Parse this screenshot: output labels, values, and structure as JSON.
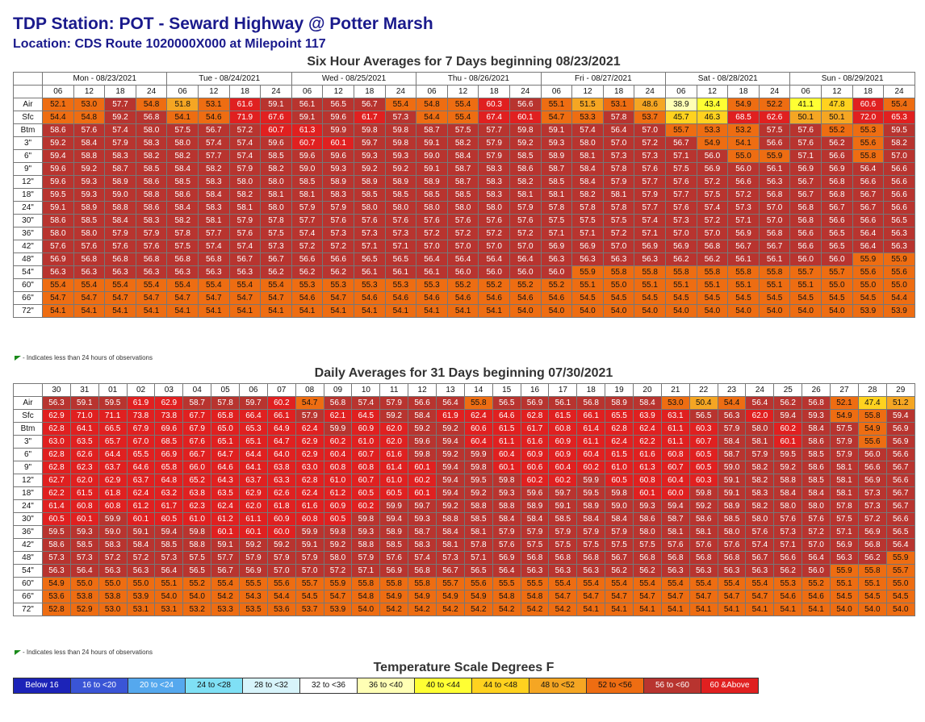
{
  "header": {
    "station": "TDP Station: POT - Seward Highway @ Potter Marsh",
    "location": "Location: CDS Route 1020000X000 at Milepoint 117"
  },
  "note_text": "- Indicates less than 24 hours of observations",
  "row_labels": [
    "Air",
    "Sfc",
    "Btm",
    "3\"",
    "6\"",
    "9\"",
    "12\"",
    "18\"",
    "24\"",
    "30\"",
    "36\"",
    "42\"",
    "48\"",
    "54\"",
    "60\"",
    "66\"",
    "72\""
  ],
  "chart_data": [
    {
      "type": "table",
      "title": "Six Hour Averages for 7 Days beginning 08/23/2021",
      "days": [
        "Mon - 08/23/2021",
        "Tue - 08/24/2021",
        "Wed - 08/25/2021",
        "Thu - 08/26/2021",
        "Fri - 08/27/2021",
        "Sat - 08/28/2021",
        "Sun - 08/29/2021"
      ],
      "hours": [
        "06",
        "12",
        "18",
        "24"
      ],
      "values": [
        [
          52.1,
          53.0,
          57.7,
          54.8,
          51.8,
          53.1,
          61.6,
          59.1,
          56.1,
          56.5,
          56.7,
          55.4,
          54.8,
          55.4,
          60.3,
          56.6,
          55.1,
          51.5,
          53.1,
          48.6,
          38.9,
          43.4,
          54.9,
          52.2,
          41.1,
          47.8,
          60.6,
          55.4
        ],
        [
          54.4,
          54.8,
          59.2,
          56.8,
          54.1,
          54.6,
          71.9,
          67.6,
          59.1,
          59.6,
          61.7,
          57.3,
          54.4,
          55.4,
          67.4,
          60.1,
          54.7,
          53.3,
          57.8,
          53.7,
          45.7,
          46.3,
          68.5,
          62.6,
          50.1,
          50.1,
          72.0,
          65.3
        ],
        [
          58.6,
          57.6,
          57.4,
          58.0,
          57.5,
          56.7,
          57.2,
          60.7,
          61.3,
          59.9,
          59.8,
          59.8,
          58.7,
          57.5,
          57.7,
          59.8,
          59.1,
          57.4,
          56.4,
          57.0,
          55.7,
          53.3,
          53.2,
          57.5,
          57.6,
          55.2,
          55.3,
          59.5
        ],
        [
          59.2,
          58.4,
          57.9,
          58.3,
          58.0,
          57.4,
          57.4,
          59.6,
          60.7,
          60.1,
          59.7,
          59.8,
          59.1,
          58.2,
          57.9,
          59.2,
          59.3,
          58.0,
          57.0,
          57.2,
          56.7,
          54.9,
          54.1,
          56.6,
          57.6,
          56.2,
          55.6,
          58.2
        ],
        [
          59.4,
          58.8,
          58.3,
          58.2,
          58.2,
          57.7,
          57.4,
          58.5,
          59.6,
          59.6,
          59.3,
          59.3,
          59.0,
          58.4,
          57.9,
          58.5,
          58.9,
          58.1,
          57.3,
          57.3,
          57.1,
          56.0,
          55.0,
          55.9,
          57.1,
          56.6,
          55.8,
          57.0
        ],
        [
          59.6,
          59.2,
          58.7,
          58.5,
          58.4,
          58.2,
          57.9,
          58.2,
          59.0,
          59.3,
          59.2,
          59.2,
          59.1,
          58.7,
          58.3,
          58.6,
          58.7,
          58.4,
          57.8,
          57.6,
          57.5,
          56.9,
          56.0,
          56.1,
          56.9,
          56.9,
          56.4,
          56.6
        ],
        [
          59.6,
          59.3,
          58.9,
          58.6,
          58.5,
          58.3,
          58.0,
          58.0,
          58.5,
          58.9,
          58.9,
          58.9,
          58.9,
          58.7,
          58.3,
          58.2,
          58.5,
          58.4,
          57.9,
          57.7,
          57.6,
          57.2,
          56.6,
          56.3,
          56.7,
          56.8,
          56.6,
          56.6
        ],
        [
          59.5,
          59.3,
          59.0,
          58.8,
          58.6,
          58.4,
          58.2,
          58.1,
          58.1,
          58.3,
          58.5,
          58.5,
          58.5,
          58.5,
          58.3,
          58.1,
          58.1,
          58.2,
          58.1,
          57.9,
          57.7,
          57.5,
          57.2,
          56.8,
          56.7,
          56.8,
          56.7,
          56.6
        ],
        [
          59.1,
          58.9,
          58.8,
          58.6,
          58.4,
          58.3,
          58.1,
          58.0,
          57.9,
          57.9,
          58.0,
          58.0,
          58.0,
          58.0,
          58.0,
          57.9,
          57.8,
          57.8,
          57.8,
          57.7,
          57.6,
          57.4,
          57.3,
          57.0,
          56.8,
          56.7,
          56.7,
          56.6
        ],
        [
          58.6,
          58.5,
          58.4,
          58.3,
          58.2,
          58.1,
          57.9,
          57.8,
          57.7,
          57.6,
          57.6,
          57.6,
          57.6,
          57.6,
          57.6,
          57.6,
          57.5,
          57.5,
          57.5,
          57.4,
          57.3,
          57.2,
          57.1,
          57.0,
          56.8,
          56.6,
          56.6,
          56.5
        ],
        [
          58.0,
          58.0,
          57.9,
          57.9,
          57.8,
          57.7,
          57.6,
          57.5,
          57.4,
          57.3,
          57.3,
          57.3,
          57.2,
          57.2,
          57.2,
          57.2,
          57.1,
          57.1,
          57.2,
          57.1,
          57.0,
          57.0,
          56.9,
          56.8,
          56.6,
          56.5,
          56.4,
          56.3
        ],
        [
          57.6,
          57.6,
          57.6,
          57.6,
          57.5,
          57.4,
          57.4,
          57.3,
          57.2,
          57.2,
          57.1,
          57.1,
          57.0,
          57.0,
          57.0,
          57.0,
          56.9,
          56.9,
          57.0,
          56.9,
          56.9,
          56.8,
          56.7,
          56.7,
          56.6,
          56.5,
          56.4,
          56.3
        ],
        [
          56.9,
          56.8,
          56.8,
          56.8,
          56.8,
          56.8,
          56.7,
          56.7,
          56.6,
          56.6,
          56.5,
          56.5,
          56.4,
          56.4,
          56.4,
          56.4,
          56.3,
          56.3,
          56.3,
          56.3,
          56.2,
          56.2,
          56.1,
          56.1,
          56.0,
          56.0,
          55.9,
          55.9
        ],
        [
          56.3,
          56.3,
          56.3,
          56.3,
          56.3,
          56.3,
          56.3,
          56.2,
          56.2,
          56.2,
          56.1,
          56.1,
          56.1,
          56.0,
          56.0,
          56.0,
          56.0,
          55.9,
          55.8,
          55.8,
          55.8,
          55.8,
          55.8,
          55.8,
          55.7,
          55.7,
          55.6,
          55.6
        ],
        [
          55.4,
          55.4,
          55.4,
          55.4,
          55.4,
          55.4,
          55.4,
          55.4,
          55.3,
          55.3,
          55.3,
          55.3,
          55.3,
          55.2,
          55.2,
          55.2,
          55.2,
          55.1,
          55.0,
          55.1,
          55.1,
          55.1,
          55.1,
          55.1,
          55.1,
          55.0,
          55.0,
          55.0
        ],
        [
          54.7,
          54.7,
          54.7,
          54.7,
          54.7,
          54.7,
          54.7,
          54.7,
          54.6,
          54.7,
          54.6,
          54.6,
          54.6,
          54.6,
          54.6,
          54.6,
          54.6,
          54.5,
          54.5,
          54.5,
          54.5,
          54.5,
          54.5,
          54.5,
          54.5,
          54.5,
          54.5,
          54.4
        ],
        [
          54.1,
          54.1,
          54.1,
          54.1,
          54.1,
          54.1,
          54.1,
          54.1,
          54.1,
          54.1,
          54.1,
          54.1,
          54.1,
          54.1,
          54.1,
          54.0,
          54.0,
          54.0,
          54.0,
          54.0,
          54.0,
          54.0,
          54.0,
          54.0,
          54.0,
          54.0,
          53.9,
          53.9
        ]
      ]
    },
    {
      "type": "table",
      "title": "Daily Averages for 31 Days beginning 07/30/2021",
      "days": [
        "30",
        "31",
        "01",
        "02",
        "03",
        "04",
        "05",
        "06",
        "07",
        "08",
        "09",
        "10",
        "11",
        "12",
        "13",
        "14",
        "15",
        "16",
        "17",
        "18",
        "19",
        "20",
        "21",
        "22",
        "23",
        "24",
        "25",
        "26",
        "27",
        "28",
        "29"
      ],
      "values": [
        [
          56.3,
          59.1,
          59.5,
          61.9,
          62.9,
          58.7,
          57.8,
          59.7,
          60.2,
          54.7,
          56.8,
          57.4,
          57.9,
          56.6,
          56.4,
          55.8,
          56.5,
          56.9,
          56.1,
          56.8,
          58.9,
          58.4,
          53.0,
          50.4,
          54.4,
          56.4,
          56.2,
          56.8,
          52.1,
          47.4,
          51.2
        ],
        [
          62.9,
          71.0,
          71.1,
          73.8,
          73.8,
          67.7,
          65.8,
          66.4,
          66.1,
          57.9,
          62.1,
          64.5,
          59.2,
          58.4,
          61.9,
          62.4,
          64.6,
          62.8,
          61.5,
          66.1,
          65.5,
          63.9,
          63.1,
          56.5,
          56.3,
          62.0,
          59.4,
          59.3,
          54.9,
          55.8,
          59.4
        ],
        [
          62.8,
          64.1,
          66.5,
          67.9,
          69.6,
          67.9,
          65.0,
          65.3,
          64.9,
          62.4,
          59.9,
          60.9,
          62.0,
          59.2,
          59.2,
          60.6,
          61.5,
          61.7,
          60.8,
          61.4,
          62.8,
          62.4,
          61.1,
          60.3,
          57.9,
          58.0,
          60.2,
          58.4,
          57.5,
          54.9,
          56.9
        ],
        [
          63.0,
          63.5,
          65.7,
          67.0,
          68.5,
          67.6,
          65.1,
          65.1,
          64.7,
          62.9,
          60.2,
          61.0,
          62.0,
          59.6,
          59.4,
          60.4,
          61.1,
          61.6,
          60.9,
          61.1,
          62.4,
          62.2,
          61.1,
          60.7,
          58.4,
          58.1,
          60.1,
          58.6,
          57.9,
          55.6,
          56.9
        ],
        [
          62.8,
          62.6,
          64.4,
          65.5,
          66.9,
          66.7,
          64.7,
          64.4,
          64.0,
          62.9,
          60.4,
          60.7,
          61.6,
          59.8,
          59.2,
          59.9,
          60.4,
          60.9,
          60.9,
          60.4,
          61.5,
          61.6,
          60.8,
          60.5,
          58.7,
          57.9,
          59.5,
          58.5,
          57.9,
          56.0,
          56.6
        ],
        [
          62.8,
          62.3,
          63.7,
          64.6,
          65.8,
          66.0,
          64.6,
          64.1,
          63.8,
          63.0,
          60.8,
          60.8,
          61.4,
          60.1,
          59.4,
          59.8,
          60.1,
          60.6,
          60.4,
          60.2,
          61.0,
          61.3,
          60.7,
          60.5,
          59.0,
          58.2,
          59.2,
          58.6,
          58.1,
          56.6,
          56.7
        ],
        [
          62.7,
          62.0,
          62.9,
          63.7,
          64.8,
          65.2,
          64.3,
          63.7,
          63.3,
          62.8,
          61.0,
          60.7,
          61.0,
          60.2,
          59.4,
          59.5,
          59.8,
          60.2,
          60.2,
          59.9,
          60.5,
          60.8,
          60.4,
          60.3,
          59.1,
          58.2,
          58.8,
          58.5,
          58.1,
          56.9,
          56.6
        ],
        [
          62.2,
          61.5,
          61.8,
          62.4,
          63.2,
          63.8,
          63.5,
          62.9,
          62.6,
          62.4,
          61.2,
          60.5,
          60.5,
          60.1,
          59.4,
          59.2,
          59.3,
          59.6,
          59.7,
          59.5,
          59.8,
          60.1,
          60.0,
          59.8,
          59.1,
          58.3,
          58.4,
          58.4,
          58.1,
          57.3,
          56.7
        ],
        [
          61.4,
          60.8,
          60.8,
          61.2,
          61.7,
          62.3,
          62.4,
          62.0,
          61.8,
          61.6,
          60.9,
          60.2,
          59.9,
          59.7,
          59.2,
          58.8,
          58.8,
          58.9,
          59.1,
          58.9,
          59.0,
          59.3,
          59.4,
          59.2,
          58.9,
          58.2,
          58.0,
          58.0,
          57.8,
          57.3,
          56.7
        ],
        [
          60.5,
          60.1,
          59.9,
          60.1,
          60.5,
          61.0,
          61.2,
          61.1,
          60.9,
          60.8,
          60.5,
          59.8,
          59.4,
          59.3,
          58.8,
          58.5,
          58.4,
          58.4,
          58.5,
          58.4,
          58.4,
          58.6,
          58.7,
          58.6,
          58.5,
          58.0,
          57.6,
          57.6,
          57.5,
          57.2,
          56.6
        ],
        [
          59.5,
          59.3,
          59.0,
          59.1,
          59.4,
          59.8,
          60.1,
          60.1,
          60.0,
          59.9,
          59.8,
          59.3,
          58.9,
          58.7,
          58.4,
          58.1,
          57.9,
          57.9,
          57.9,
          57.9,
          57.9,
          58.0,
          58.1,
          58.1,
          58.0,
          57.6,
          57.3,
          57.2,
          57.1,
          56.9,
          56.5
        ],
        [
          58.6,
          58.5,
          58.3,
          58.4,
          58.5,
          58.8,
          59.1,
          59.2,
          59.2,
          59.1,
          59.2,
          58.8,
          58.5,
          58.3,
          58.1,
          57.8,
          57.6,
          57.5,
          57.5,
          57.5,
          57.5,
          57.5,
          57.6,
          57.6,
          57.6,
          57.4,
          57.1,
          57.0,
          56.9,
          56.8,
          56.4
        ],
        [
          57.3,
          57.3,
          57.2,
          57.2,
          57.3,
          57.5,
          57.7,
          57.9,
          57.9,
          57.9,
          58.0,
          57.9,
          57.6,
          57.4,
          57.3,
          57.1,
          56.9,
          56.8,
          56.8,
          56.8,
          56.7,
          56.8,
          56.8,
          56.8,
          56.8,
          56.7,
          56.6,
          56.4,
          56.3,
          56.2,
          55.9
        ],
        [
          56.3,
          56.4,
          56.3,
          56.3,
          56.4,
          56.5,
          56.7,
          56.9,
          57.0,
          57.0,
          57.2,
          57.1,
          56.9,
          56.8,
          56.7,
          56.5,
          56.4,
          56.3,
          56.3,
          56.3,
          56.2,
          56.2,
          56.3,
          56.3,
          56.3,
          56.3,
          56.2,
          56.0,
          55.9,
          55.8,
          55.7
        ],
        [
          54.9,
          55.0,
          55.0,
          55.0,
          55.1,
          55.2,
          55.4,
          55.5,
          55.6,
          55.7,
          55.9,
          55.8,
          55.8,
          55.8,
          55.7,
          55.6,
          55.5,
          55.5,
          55.4,
          55.4,
          55.4,
          55.4,
          55.4,
          55.4,
          55.4,
          55.4,
          55.3,
          55.2,
          55.1,
          55.1,
          55.0
        ],
        [
          53.6,
          53.8,
          53.8,
          53.9,
          54.0,
          54.0,
          54.2,
          54.3,
          54.4,
          54.5,
          54.7,
          54.8,
          54.9,
          54.9,
          54.9,
          54.9,
          54.8,
          54.8,
          54.7,
          54.7,
          54.7,
          54.7,
          54.7,
          54.7,
          54.7,
          54.7,
          54.6,
          54.6,
          54.5,
          54.5,
          54.5
        ],
        [
          52.8,
          52.9,
          53.0,
          53.1,
          53.1,
          53.2,
          53.3,
          53.5,
          53.6,
          53.7,
          53.9,
          54.0,
          54.2,
          54.2,
          54.2,
          54.2,
          54.2,
          54.2,
          54.2,
          54.1,
          54.1,
          54.1,
          54.1,
          54.1,
          54.1,
          54.1,
          54.1,
          54.1,
          54.0,
          54.0,
          54.0
        ]
      ]
    }
  ],
  "legend": {
    "title": "Temperature Scale Degrees F",
    "items": [
      {
        "label": "Below 16",
        "color": "#1c23b8",
        "text": "#ffffff"
      },
      {
        "label": "16 to <20",
        "color": "#3a55d6",
        "text": "#ffffff"
      },
      {
        "label": "20 to <24",
        "color": "#55a8ee",
        "text": "#ffffff"
      },
      {
        "label": "24 to <28",
        "color": "#7fe0f5",
        "text": "#111111"
      },
      {
        "label": "28 to <32",
        "color": "#d7f4fb",
        "text": "#111111"
      },
      {
        "label": "32 to <36",
        "color": "#ffffff",
        "text": "#111111"
      },
      {
        "label": "36 to <40",
        "color": "#ffffb5",
        "text": "#111111"
      },
      {
        "label": "40 to <44",
        "color": "#ffff33",
        "text": "#111111"
      },
      {
        "label": "44 to <48",
        "color": "#ffd21f",
        "text": "#111111"
      },
      {
        "label": "48 to <52",
        "color": "#f5a623",
        "text": "#111111"
      },
      {
        "label": "52 to <56",
        "color": "#ee6d12",
        "text": "#111111"
      },
      {
        "label": "56 to <60",
        "color": "#b8342f",
        "text": "#ffffff"
      },
      {
        "label": "60 &Above",
        "color": "#e02020",
        "text": "#ffffff"
      }
    ]
  }
}
